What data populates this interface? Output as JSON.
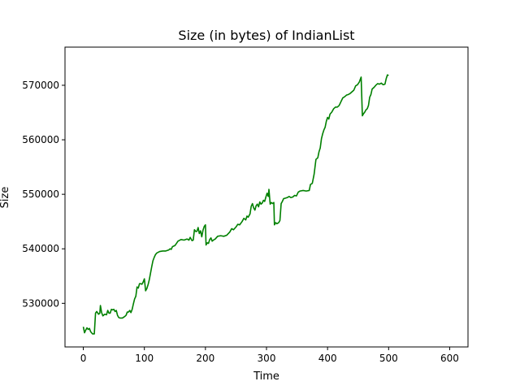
{
  "chart_data": {
    "type": "line",
    "title": "Size (in bytes) of IndianList",
    "xlabel": "Time",
    "ylabel": "Size",
    "xlim": [
      -30,
      630
    ],
    "ylim": [
      522000,
      577000
    ],
    "xticks": [
      0,
      100,
      200,
      300,
      400,
      500,
      600
    ],
    "yticks": [
      530000,
      540000,
      550000,
      560000,
      570000
    ],
    "grid": false,
    "series": [
      {
        "color": "#008000",
        "points": [
          [
            0,
            525700
          ],
          [
            2,
            524600
          ],
          [
            4,
            525100
          ],
          [
            6,
            525500
          ],
          [
            8,
            525200
          ],
          [
            10,
            525400
          ],
          [
            12,
            524800
          ],
          [
            15,
            524400
          ],
          [
            18,
            524400
          ],
          [
            20,
            528200
          ],
          [
            22,
            528500
          ],
          [
            25,
            528000
          ],
          [
            27,
            528200
          ],
          [
            28,
            529600
          ],
          [
            30,
            528300
          ],
          [
            32,
            527700
          ],
          [
            35,
            528000
          ],
          [
            38,
            527900
          ],
          [
            40,
            528700
          ],
          [
            42,
            528200
          ],
          [
            44,
            528200
          ],
          [
            46,
            528900
          ],
          [
            48,
            528800
          ],
          [
            50,
            528900
          ],
          [
            52,
            528500
          ],
          [
            54,
            528700
          ],
          [
            56,
            527800
          ],
          [
            58,
            527400
          ],
          [
            60,
            527300
          ],
          [
            64,
            527300
          ],
          [
            68,
            527600
          ],
          [
            70,
            527800
          ],
          [
            72,
            528400
          ],
          [
            74,
            528400
          ],
          [
            76,
            528700
          ],
          [
            78,
            528300
          ],
          [
            80,
            528900
          ],
          [
            82,
            529900
          ],
          [
            84,
            530800
          ],
          [
            86,
            531300
          ],
          [
            88,
            533000
          ],
          [
            90,
            532800
          ],
          [
            92,
            533600
          ],
          [
            94,
            533600
          ],
          [
            96,
            533500
          ],
          [
            98,
            533900
          ],
          [
            100,
            534500
          ],
          [
            102,
            532300
          ],
          [
            104,
            532700
          ],
          [
            106,
            533400
          ],
          [
            108,
            534300
          ],
          [
            110,
            535500
          ],
          [
            112,
            536700
          ],
          [
            114,
            537800
          ],
          [
            116,
            538400
          ],
          [
            118,
            538900
          ],
          [
            120,
            539200
          ],
          [
            125,
            539500
          ],
          [
            130,
            539600
          ],
          [
            135,
            539600
          ],
          [
            140,
            539800
          ],
          [
            142,
            540000
          ],
          [
            144,
            539900
          ],
          [
            146,
            540400
          ],
          [
            148,
            540500
          ],
          [
            150,
            540600
          ],
          [
            152,
            540900
          ],
          [
            155,
            541400
          ],
          [
            160,
            541700
          ],
          [
            165,
            541600
          ],
          [
            170,
            541800
          ],
          [
            173,
            541600
          ],
          [
            175,
            542100
          ],
          [
            178,
            541500
          ],
          [
            180,
            541600
          ],
          [
            182,
            543500
          ],
          [
            184,
            543200
          ],
          [
            186,
            543200
          ],
          [
            188,
            543900
          ],
          [
            190,
            542800
          ],
          [
            192,
            543300
          ],
          [
            194,
            542200
          ],
          [
            196,
            543400
          ],
          [
            198,
            544100
          ],
          [
            200,
            544400
          ],
          [
            201,
            540700
          ],
          [
            203,
            541100
          ],
          [
            205,
            541000
          ],
          [
            207,
            541700
          ],
          [
            209,
            542000
          ],
          [
            211,
            541400
          ],
          [
            213,
            541600
          ],
          [
            216,
            541800
          ],
          [
            220,
            542300
          ],
          [
            225,
            542400
          ],
          [
            230,
            542300
          ],
          [
            235,
            542500
          ],
          [
            240,
            543100
          ],
          [
            243,
            543700
          ],
          [
            246,
            543500
          ],
          [
            250,
            544000
          ],
          [
            253,
            544500
          ],
          [
            256,
            544400
          ],
          [
            260,
            545000
          ],
          [
            263,
            545600
          ],
          [
            266,
            545300
          ],
          [
            268,
            546000
          ],
          [
            270,
            545800
          ],
          [
            273,
            546400
          ],
          [
            275,
            547800
          ],
          [
            277,
            548300
          ],
          [
            279,
            547500
          ],
          [
            281,
            547100
          ],
          [
            283,
            547900
          ],
          [
            285,
            548200
          ],
          [
            287,
            547700
          ],
          [
            289,
            548600
          ],
          [
            291,
            548200
          ],
          [
            293,
            548400
          ],
          [
            295,
            548900
          ],
          [
            297,
            548700
          ],
          [
            299,
            549500
          ],
          [
            301,
            550200
          ],
          [
            303,
            549600
          ],
          [
            304,
            550900
          ],
          [
            306,
            548200
          ],
          [
            308,
            548500
          ],
          [
            310,
            548300
          ],
          [
            312,
            548500
          ],
          [
            313,
            544400
          ],
          [
            315,
            544800
          ],
          [
            317,
            544600
          ],
          [
            320,
            544800
          ],
          [
            322,
            545200
          ],
          [
            324,
            548300
          ],
          [
            326,
            548700
          ],
          [
            328,
            549200
          ],
          [
            331,
            549300
          ],
          [
            334,
            549400
          ],
          [
            337,
            549600
          ],
          [
            340,
            549400
          ],
          [
            343,
            549500
          ],
          [
            346,
            549800
          ],
          [
            349,
            549700
          ],
          [
            352,
            550400
          ],
          [
            355,
            550600
          ],
          [
            360,
            550700
          ],
          [
            365,
            550600
          ],
          [
            370,
            550700
          ],
          [
            372,
            551800
          ],
          [
            375,
            552000
          ],
          [
            378,
            553700
          ],
          [
            381,
            556400
          ],
          [
            384,
            556700
          ],
          [
            386,
            557800
          ],
          [
            388,
            558500
          ],
          [
            390,
            560200
          ],
          [
            392,
            561100
          ],
          [
            394,
            561800
          ],
          [
            396,
            562300
          ],
          [
            398,
            563400
          ],
          [
            400,
            564100
          ],
          [
            402,
            563800
          ],
          [
            404,
            564700
          ],
          [
            407,
            565100
          ],
          [
            410,
            565700
          ],
          [
            413,
            566000
          ],
          [
            416,
            566000
          ],
          [
            419,
            566300
          ],
          [
            422,
            567000
          ],
          [
            425,
            567700
          ],
          [
            428,
            567900
          ],
          [
            431,
            568200
          ],
          [
            434,
            568300
          ],
          [
            437,
            568500
          ],
          [
            440,
            568800
          ],
          [
            443,
            569100
          ],
          [
            446,
            569900
          ],
          [
            449,
            570100
          ],
          [
            452,
            570600
          ],
          [
            455,
            571500
          ],
          [
            457,
            564400
          ],
          [
            459,
            564800
          ],
          [
            461,
            565100
          ],
          [
            463,
            565500
          ],
          [
            465,
            565700
          ],
          [
            467,
            566300
          ],
          [
            469,
            567800
          ],
          [
            471,
            568300
          ],
          [
            473,
            569300
          ],
          [
            476,
            569600
          ],
          [
            479,
            570000
          ],
          [
            482,
            570300
          ],
          [
            485,
            570200
          ],
          [
            488,
            570400
          ],
          [
            491,
            570100
          ],
          [
            494,
            570200
          ],
          [
            496,
            571200
          ],
          [
            498,
            571900
          ],
          [
            500,
            571800
          ]
        ]
      }
    ]
  }
}
